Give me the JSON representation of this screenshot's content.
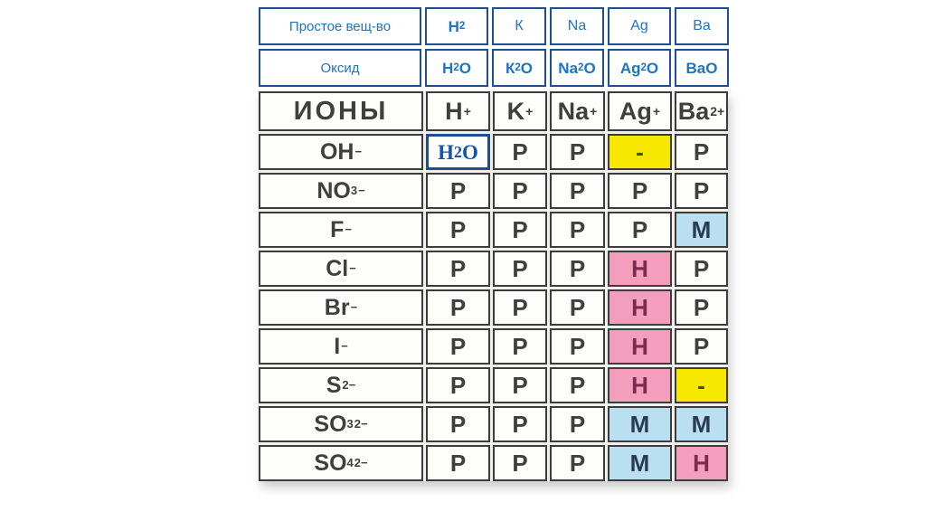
{
  "slide": {
    "background": "#ffffff"
  },
  "compounds_table": {
    "title_semantics": "simple substances and their oxides",
    "colors": {
      "border": "#1F4E93",
      "text": "#1B74C6",
      "cell_bg": "#ffffff"
    },
    "row1": {
      "label": "Простое вещ-во",
      "cells": [
        {
          "html": "H<sub>2</sub>",
          "bold": true
        },
        {
          "html": "К",
          "bold": false
        },
        {
          "html": "Na",
          "bold": false
        },
        {
          "html": "Ag",
          "bold": false
        },
        {
          "html": "Ba",
          "bold": false
        }
      ]
    },
    "row2": {
      "label": "Оксид",
      "cells": [
        {
          "html": "H<sub>2</sub>O",
          "bold": true
        },
        {
          "html": "К<sub>2</sub>O",
          "bold": true
        },
        {
          "html": "Na<sub>2</sub>O",
          "bold": true
        },
        {
          "html": "Ag<sub>2</sub>O",
          "bold": true
        },
        {
          "html": "BaO",
          "bold": true
        }
      ]
    }
  },
  "solubility_table": {
    "corner_label": "ИОНЫ",
    "cation_headers": [
      "H<sup>+</sup>",
      "K<sup>+</sup>",
      "Na<sup>+</sup>",
      "Ag<sup>+</sup>",
      "Ba<sup>2+</sup>"
    ],
    "colors": {
      "cell_bg": "#FDFDFA",
      "border": "#3C3C3C",
      "text": "#3F3F3F",
      "yellow_bg": "#F6E800",
      "pink_bg": "#F49EBE",
      "blue_bg": "#B9DFF0",
      "pink_text": "#7C2B4E",
      "blue_text": "#2B3A52",
      "h2o_border": "#1F4E93",
      "h2o_text": "#1456A8"
    },
    "rows": [
      {
        "anion": "OH<sup>−</sup>",
        "cells": [
          {
            "html": "H<sub>2</sub>O",
            "style": "h2o"
          },
          {
            "html": "Р",
            "style": "soluble"
          },
          {
            "html": "Р",
            "style": "soluble"
          },
          {
            "html": "-",
            "style": "none"
          },
          {
            "html": "Р",
            "style": "soluble"
          }
        ]
      },
      {
        "anion": "NO<sub>3</sub><sup>−</sup>",
        "cells": [
          {
            "html": "Р",
            "style": "soluble"
          },
          {
            "html": "Р",
            "style": "soluble"
          },
          {
            "html": "Р",
            "style": "soluble"
          },
          {
            "html": "Р",
            "style": "soluble"
          },
          {
            "html": "Р",
            "style": "soluble"
          }
        ]
      },
      {
        "anion": "F <sup>−</sup>",
        "cells": [
          {
            "html": "Р",
            "style": "soluble"
          },
          {
            "html": "Р",
            "style": "soluble"
          },
          {
            "html": "Р",
            "style": "soluble"
          },
          {
            "html": "Р",
            "style": "soluble"
          },
          {
            "html": "М",
            "style": "slightly"
          }
        ]
      },
      {
        "anion": "Cl <sup>−</sup>",
        "cells": [
          {
            "html": "Р",
            "style": "soluble"
          },
          {
            "html": "Р",
            "style": "soluble"
          },
          {
            "html": "Р",
            "style": "soluble"
          },
          {
            "html": "Н",
            "style": "insoluble"
          },
          {
            "html": "Р",
            "style": "soluble"
          }
        ]
      },
      {
        "anion": "Br <sup>−</sup>",
        "cells": [
          {
            "html": "Р",
            "style": "soluble"
          },
          {
            "html": "Р",
            "style": "soluble"
          },
          {
            "html": "Р",
            "style": "soluble"
          },
          {
            "html": "Н",
            "style": "insoluble"
          },
          {
            "html": "Р",
            "style": "soluble"
          }
        ]
      },
      {
        "anion": "I <sup>−</sup>",
        "cells": [
          {
            "html": "Р",
            "style": "soluble"
          },
          {
            "html": "Р",
            "style": "soluble"
          },
          {
            "html": "Р",
            "style": "soluble"
          },
          {
            "html": "Н",
            "style": "insoluble"
          },
          {
            "html": "Р",
            "style": "soluble"
          }
        ]
      },
      {
        "anion": "S <sup>2−</sup>",
        "cells": [
          {
            "html": "Р",
            "style": "soluble"
          },
          {
            "html": "Р",
            "style": "soluble"
          },
          {
            "html": "Р",
            "style": "soluble"
          },
          {
            "html": "Н",
            "style": "insoluble"
          },
          {
            "html": "-",
            "style": "none"
          }
        ]
      },
      {
        "anion": "SO<sub>3</sub><sup>2−</sup>",
        "cells": [
          {
            "html": "Р",
            "style": "soluble"
          },
          {
            "html": "Р",
            "style": "soluble"
          },
          {
            "html": "Р",
            "style": "soluble"
          },
          {
            "html": "М",
            "style": "slightly"
          },
          {
            "html": "М",
            "style": "slightly"
          }
        ]
      },
      {
        "anion": "SO<sub>4</sub><sup>2−</sup>",
        "cells": [
          {
            "html": "Р",
            "style": "soluble"
          },
          {
            "html": "Р",
            "style": "soluble"
          },
          {
            "html": "Р",
            "style": "soluble"
          },
          {
            "html": "М",
            "style": "slightly"
          },
          {
            "html": "Н",
            "style": "insoluble"
          }
        ]
      }
    ]
  }
}
